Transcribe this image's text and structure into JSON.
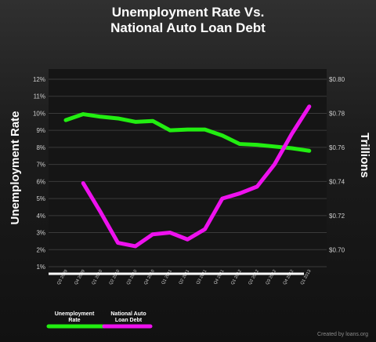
{
  "chart_data": {
    "type": "line",
    "title_line1": "Unemployment Rate Vs.",
    "title_line2": "National Auto Loan Debt",
    "ylabel": "Unemployment Rate",
    "y2label": "Trillions",
    "categories": [
      "Q3 2009",
      "Q4 2009",
      "Q1 2010",
      "Q2 2010",
      "Q3 2010",
      "Q4 2010",
      "Q1 2011",
      "Q2 2011",
      "Q3 2011",
      "Q4 2011",
      "Q1 2012",
      "Q2 2012",
      "Q3 2012",
      "Q4 2012",
      "Q1 2013"
    ],
    "ylim": [
      1,
      12
    ],
    "y_ticks": [
      "1%",
      "2%",
      "3%",
      "4%",
      "5%",
      "6%",
      "7%",
      "8%",
      "9%",
      "10%",
      "11%",
      "12%"
    ],
    "y2lim": [
      0.69,
      0.8
    ],
    "y2_ticks": [
      "$0.70",
      "$0.72",
      "$0.74",
      "$0.76",
      "$0.78",
      "$0.80"
    ],
    "grid": true,
    "legend_position": "bottom-left",
    "series": [
      {
        "name": "Unemployment Rate",
        "axis": "left",
        "color": "#22ee11",
        "x_positions": [
          0,
          1,
          2,
          3,
          4,
          5,
          6,
          7,
          8,
          9,
          10,
          11,
          12,
          13,
          14
        ],
        "values": [
          9.6,
          9.95,
          9.8,
          9.7,
          9.5,
          9.55,
          9.0,
          9.05,
          9.05,
          8.7,
          8.2,
          8.15,
          8.05,
          7.95,
          7.8
        ]
      },
      {
        "name": "National Auto Loan Debt",
        "axis": "right",
        "color": "#ee11ee",
        "x_positions": [
          0,
          1,
          2,
          3,
          4,
          5,
          6,
          7,
          8,
          9,
          10,
          11,
          12,
          13,
          14
        ],
        "values": [
          null,
          0.739,
          0.722,
          0.704,
          0.702,
          0.709,
          0.71,
          0.706,
          0.712,
          0.73,
          0.733,
          0.737,
          0.75,
          0.768,
          0.784
        ]
      }
    ],
    "legend_labels": [
      {
        "line1": "Unemployment",
        "line2": "Rate"
      },
      {
        "line1": "National Auto",
        "line2": "Loan Debt"
      }
    ]
  },
  "credit": "Created by loans.org"
}
